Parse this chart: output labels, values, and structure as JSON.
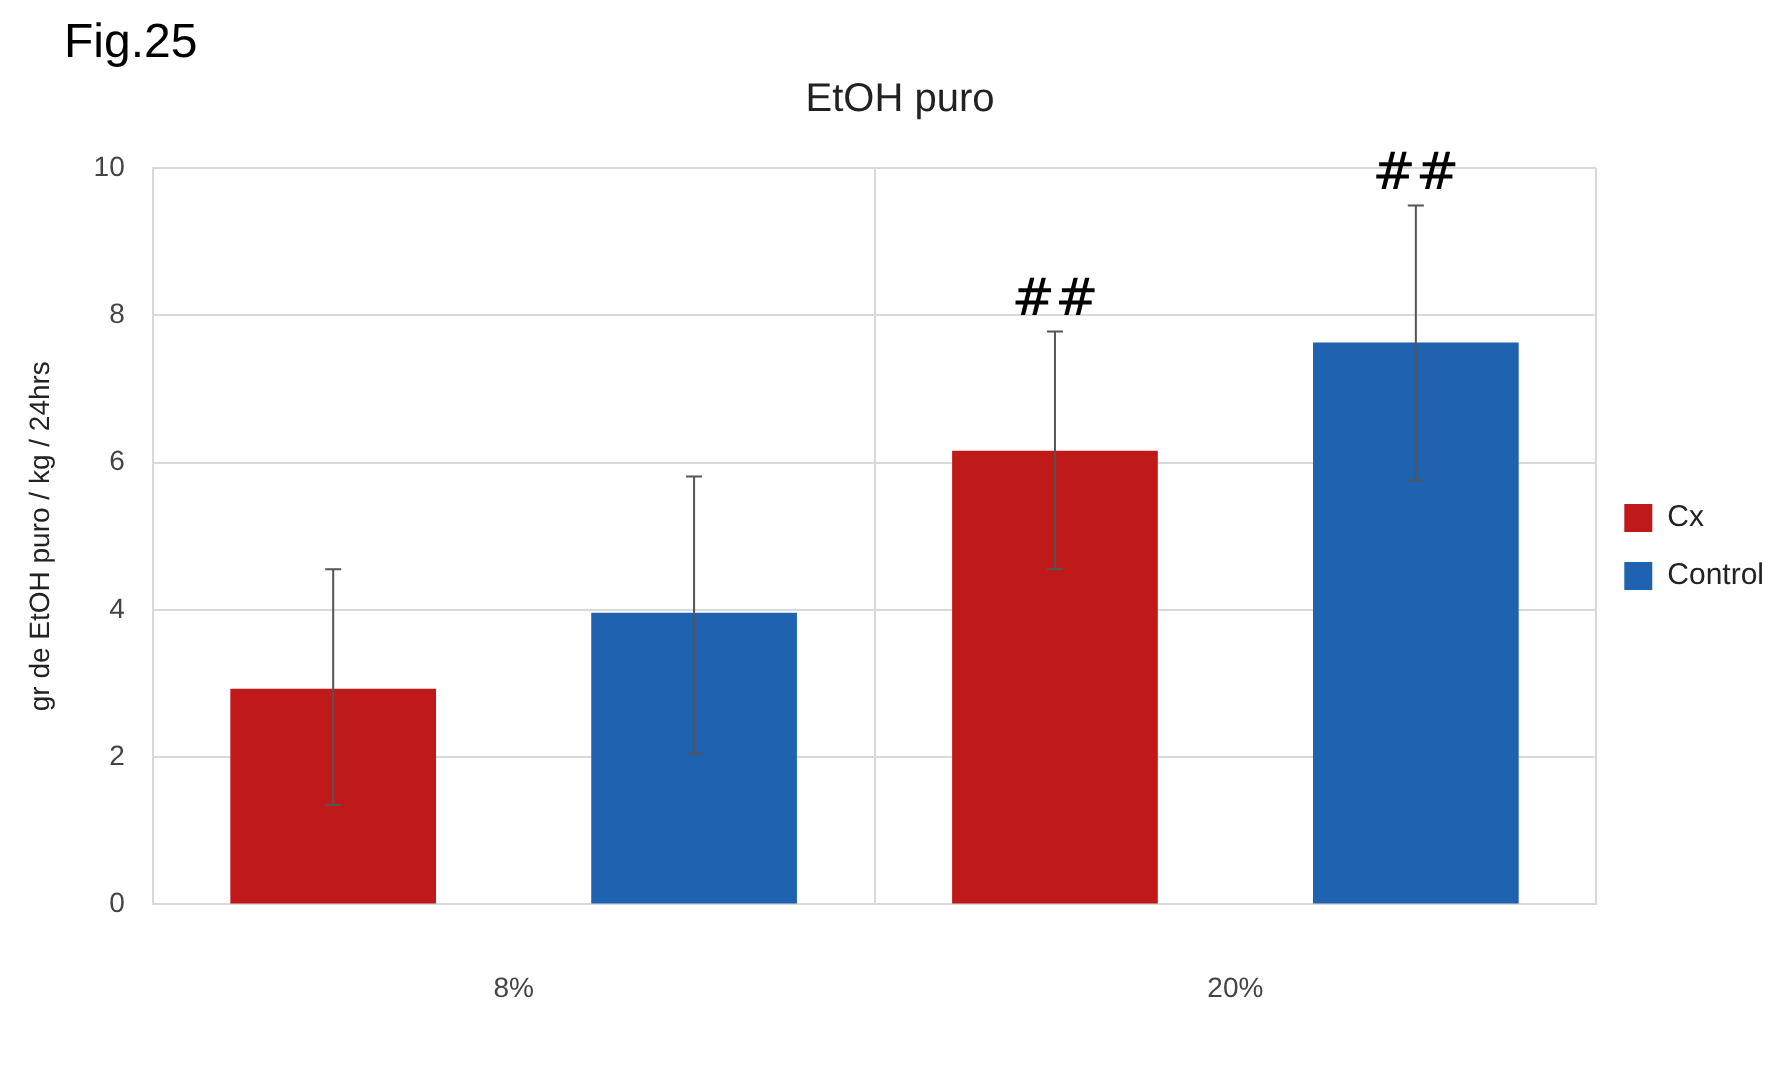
{
  "chart_data": {
    "type": "bar",
    "title": "EtOH puro",
    "ylabel": "gr de EtOH puro / kg / 24hrs",
    "categories": [
      "8%",
      "20%"
    ],
    "series": [
      {
        "name": "Cx",
        "color": "#c01919",
        "values": [
          2.93,
          6.16
        ],
        "errors": [
          [
            1.35,
            4.55
          ],
          [
            4.55,
            7.78
          ]
        ]
      },
      {
        "name": "Control",
        "color": "#1f63b0",
        "values": [
          3.96,
          7.63
        ],
        "errors": [
          [
            2.05,
            5.81
          ],
          [
            5.76,
            9.49
          ]
        ]
      }
    ],
    "ylim": [
      0,
      10
    ],
    "yticks": [
      0,
      2,
      4,
      6,
      8,
      10
    ],
    "grid": true,
    "legend": "right",
    "annotations": [
      "Fig.25",
      "##",
      "##"
    ]
  }
}
